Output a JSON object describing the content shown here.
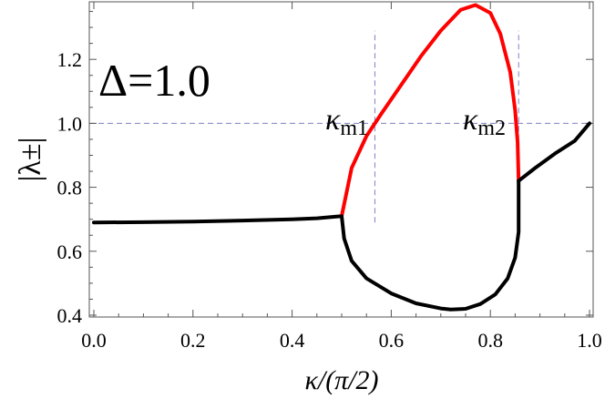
{
  "chart_data": {
    "type": "line",
    "xlabel": "κ/(π/2)",
    "ylabel": "|λ±|",
    "xlim": [
      0.0,
      1.0
    ],
    "ylim": [
      0.4,
      1.38
    ],
    "x_ticks": [
      "0.0",
      "0.2",
      "0.4",
      "0.6",
      "0.8",
      "1.0"
    ],
    "y_ticks": [
      "0.4",
      "0.6",
      "0.8",
      "1.0",
      "1.2"
    ],
    "annotations": {
      "delta": "Δ=1.0",
      "km1_symbol": "κ",
      "km1_sub": "m1",
      "km2_symbol": "κ",
      "km2_sub": "m2"
    },
    "reference_lines": {
      "horizontal_y": 1.0,
      "vertical_x": [
        0.567,
        0.857
      ],
      "vertical_y_range": [
        0.69,
        1.29
      ]
    },
    "series": [
      {
        "color": "#000000",
        "points": [
          [
            0.0,
            0.69
          ],
          [
            0.1,
            0.691
          ],
          [
            0.2,
            0.693
          ],
          [
            0.3,
            0.696
          ],
          [
            0.4,
            0.7
          ],
          [
            0.45,
            0.703
          ],
          [
            0.5,
            0.71
          ]
        ]
      },
      {
        "color": "#ff0000",
        "points": [
          [
            0.5,
            0.71
          ],
          [
            0.52,
            0.86
          ],
          [
            0.55,
            0.96
          ],
          [
            0.58,
            1.03
          ],
          [
            0.62,
            1.12
          ],
          [
            0.66,
            1.21
          ],
          [
            0.7,
            1.29
          ],
          [
            0.74,
            1.355
          ],
          [
            0.77,
            1.37
          ],
          [
            0.8,
            1.345
          ],
          [
            0.82,
            1.28
          ],
          [
            0.84,
            1.16
          ],
          [
            0.85,
            1.04
          ],
          [
            0.855,
            0.94
          ],
          [
            0.857,
            0.82
          ]
        ]
      },
      {
        "color": "#000000",
        "points": [
          [
            0.5,
            0.71
          ],
          [
            0.505,
            0.64
          ],
          [
            0.52,
            0.57
          ],
          [
            0.55,
            0.515
          ],
          [
            0.6,
            0.468
          ],
          [
            0.65,
            0.437
          ],
          [
            0.7,
            0.421
          ],
          [
            0.72,
            0.418
          ],
          [
            0.75,
            0.42
          ],
          [
            0.78,
            0.435
          ],
          [
            0.81,
            0.465
          ],
          [
            0.835,
            0.515
          ],
          [
            0.85,
            0.58
          ],
          [
            0.857,
            0.66
          ],
          [
            0.857,
            0.82
          ]
        ]
      },
      {
        "color": "#000000",
        "points": [
          [
            0.857,
            0.82
          ],
          [
            0.89,
            0.86
          ],
          [
            0.93,
            0.905
          ],
          [
            0.97,
            0.945
          ],
          [
            1.0,
            1.0
          ]
        ]
      }
    ]
  }
}
